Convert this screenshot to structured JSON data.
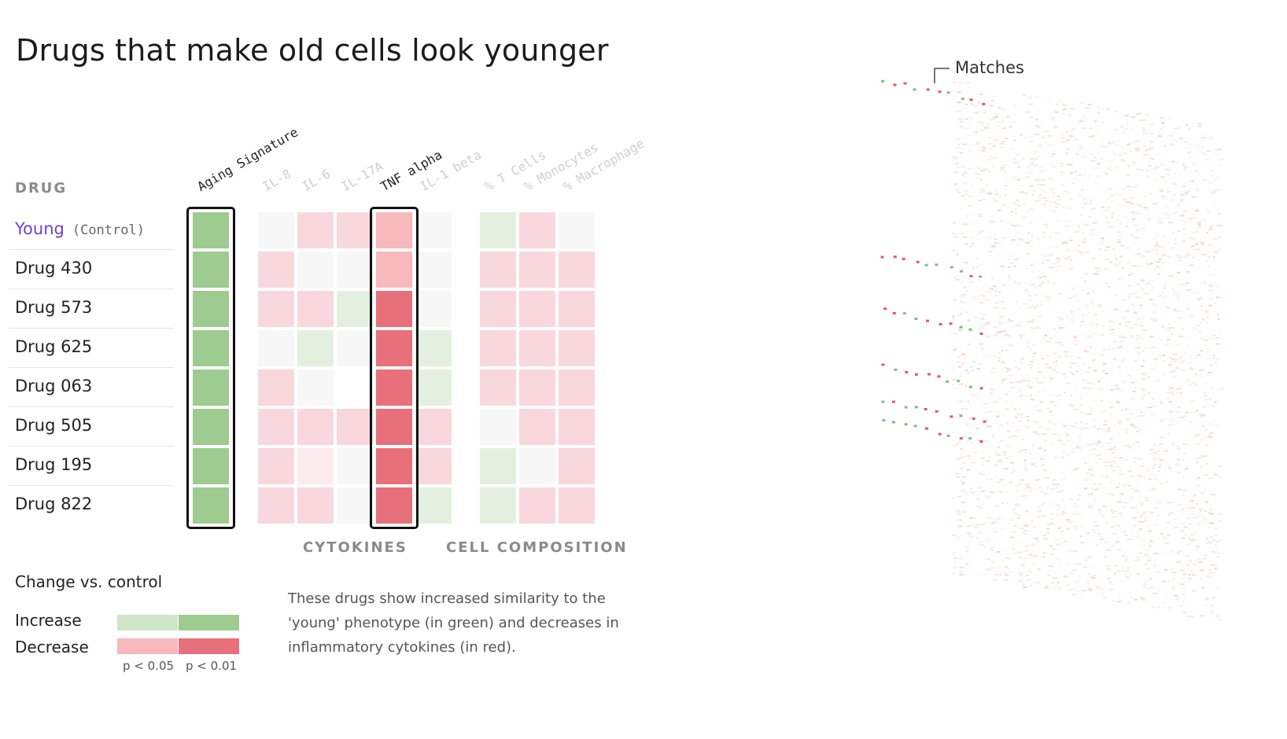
{
  "title": "Drugs that make old cells look younger",
  "drug_header": "DRUG",
  "rows": [
    {
      "name": "Young",
      "sub": "(Control)"
    },
    {
      "name": "Drug 430",
      "sub": ""
    },
    {
      "name": "Drug 573",
      "sub": ""
    },
    {
      "name": "Drug 625",
      "sub": ""
    },
    {
      "name": "Drug 063",
      "sub": ""
    },
    {
      "name": "Drug 505",
      "sub": ""
    },
    {
      "name": "Drug 195",
      "sub": ""
    },
    {
      "name": "Drug 822",
      "sub": ""
    }
  ],
  "columns": [
    {
      "label": "Aging Signature",
      "emphasis": true
    },
    {
      "label": "IL-8",
      "emphasis": false
    },
    {
      "label": "IL-6",
      "emphasis": false
    },
    {
      "label": "IL-17A",
      "emphasis": false
    },
    {
      "label": "TNF alpha",
      "emphasis": true
    },
    {
      "label": "IL-1 beta",
      "emphasis": false
    },
    {
      "label": "% T Cells",
      "emphasis": false
    },
    {
      "label": "% Monocytes",
      "emphasis": false
    },
    {
      "label": "% Macrophage",
      "emphasis": false
    }
  ],
  "groups": {
    "cytokines": "CYTOKINES",
    "cell_composition": "CELL COMPOSITION"
  },
  "colors": {
    "inc_strong": "#9ecb8f",
    "inc_weak": "#e4f0df",
    "dec_strong": "#e8707a",
    "dec_mid": "#f7b9bb",
    "dec_weak": "#f8d8dc",
    "dec_faint": "#fcebed",
    "neutral": "#f7f7f7",
    "blank": "#ffffff"
  },
  "chart_data": {
    "type": "heatmap",
    "title": "Drugs that make old cells look younger",
    "rows": [
      "Young (Control)",
      "Drug 430",
      "Drug 573",
      "Drug 625",
      "Drug 063",
      "Drug 505",
      "Drug 195",
      "Drug 822"
    ],
    "columns": [
      "Aging Signature",
      "IL-8",
      "IL-6",
      "IL-17A",
      "TNF alpha",
      "IL-1 beta",
      "% T Cells",
      "% Monocytes",
      "% Macrophage"
    ],
    "values": [
      [
        "inc_strong",
        "neutral",
        "dec_weak",
        "dec_weak",
        "dec_mid",
        "neutral",
        "inc_weak",
        "dec_weak",
        "neutral"
      ],
      [
        "inc_strong",
        "dec_weak",
        "neutral",
        "neutral",
        "dec_mid",
        "neutral",
        "dec_weak",
        "dec_weak",
        "dec_weak"
      ],
      [
        "inc_strong",
        "dec_weak",
        "dec_weak",
        "inc_weak",
        "dec_strong",
        "neutral",
        "dec_weak",
        "dec_weak",
        "dec_weak"
      ],
      [
        "inc_strong",
        "neutral",
        "inc_weak",
        "neutral",
        "dec_strong",
        "inc_weak",
        "dec_weak",
        "dec_weak",
        "dec_weak"
      ],
      [
        "inc_strong",
        "dec_weak",
        "neutral",
        "blank",
        "dec_strong",
        "inc_weak",
        "dec_weak",
        "dec_weak",
        "dec_weak"
      ],
      [
        "inc_strong",
        "dec_weak",
        "dec_weak",
        "dec_weak",
        "dec_strong",
        "dec_weak",
        "neutral",
        "dec_weak",
        "dec_weak"
      ],
      [
        "inc_strong",
        "dec_weak",
        "dec_faint",
        "neutral",
        "dec_strong",
        "dec_weak",
        "inc_weak",
        "neutral",
        "dec_weak"
      ],
      [
        "inc_strong",
        "dec_weak",
        "dec_weak",
        "neutral",
        "dec_strong",
        "inc_weak",
        "inc_weak",
        "dec_weak",
        "dec_weak"
      ]
    ],
    "highlighted_columns": [
      "Aging Signature",
      "TNF alpha"
    ]
  },
  "legend": {
    "title": "Change vs. control",
    "increase": "Increase",
    "decrease": "Decrease",
    "p1": "p < 0.05",
    "p2": "p < 0.01"
  },
  "note": "These drugs show increased similarity to the 'young' phenotype (in green) and decreases in inflammatory cytokines (in red).",
  "matches_label": "Matches"
}
